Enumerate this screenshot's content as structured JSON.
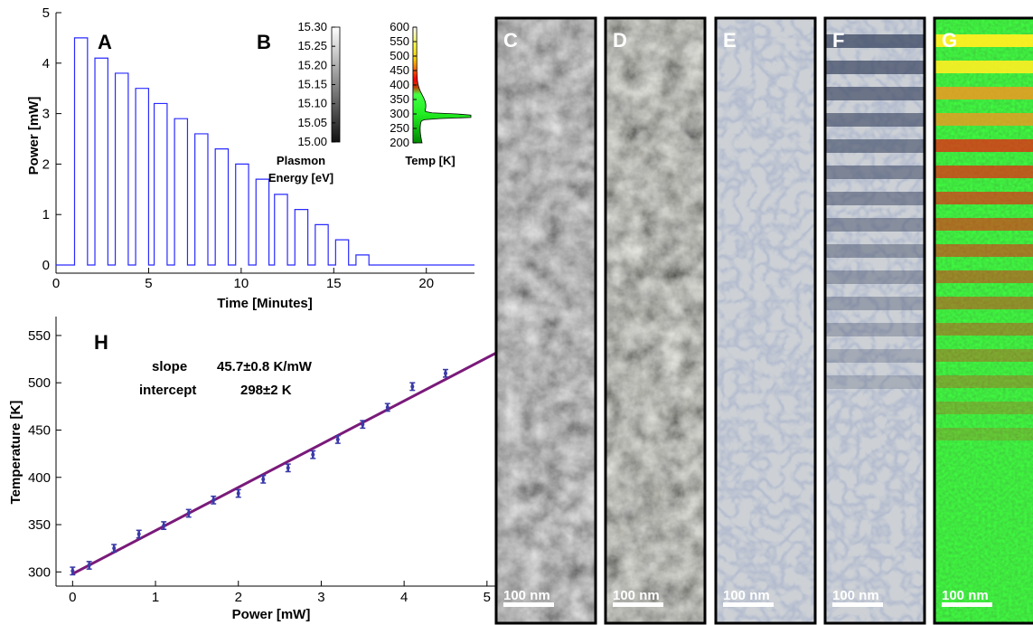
{
  "chart_data": [
    {
      "panel": "A",
      "type": "line",
      "xlabel": "Time [Minutes]",
      "ylabel": "Power [mW]",
      "xlim": [
        0,
        22.6
      ],
      "ylim": [
        0,
        5
      ],
      "xticks": [
        0,
        5,
        10,
        15,
        20
      ],
      "yticks": [
        0,
        1,
        2,
        3,
        4,
        5
      ],
      "pulse_starts": [
        1.0,
        2.1,
        3.2,
        4.3,
        5.3,
        6.4,
        7.5,
        8.6,
        9.7,
        10.8,
        11.8,
        12.9,
        14.0,
        15.1,
        16.2
      ],
      "pulse_ends": [
        1.7,
        2.8,
        3.9,
        5.0,
        6.0,
        7.1,
        8.2,
        9.3,
        10.4,
        11.5,
        12.5,
        13.6,
        14.7,
        15.8,
        16.9
      ],
      "values": [
        4.5,
        4.1,
        3.8,
        3.5,
        3.2,
        2.9,
        2.6,
        2.3,
        2.0,
        1.7,
        1.4,
        1.1,
        0.8,
        0.5,
        0.2
      ],
      "baseline": 0,
      "color": "#2a2aff"
    },
    {
      "panel": "B",
      "type": "colorbar",
      "ticks": [
        "15.30",
        "15.25",
        "15.20",
        "15.15",
        "15.10",
        "15.05",
        "15.00"
      ],
      "label_line1": "Plasmon",
      "label_line2": "Energy [eV]",
      "gradient_top": "#ffffff",
      "gradient_bottom": "#111111"
    },
    {
      "panel": "B",
      "type": "area",
      "ticks": [
        600,
        550,
        500,
        450,
        400,
        350,
        300,
        250,
        200
      ],
      "ylim": [
        200,
        600
      ],
      "xlabel": "Temp [K]",
      "peak_temp": 293,
      "colors": [
        "#00a000",
        "#33ff33",
        "#ff0000",
        "#ffff00",
        "#ffffff"
      ]
    },
    {
      "panel": "H",
      "type": "scatter",
      "xlabel": "Power [mW]",
      "ylabel": "Temperature [K]",
      "xlim": [
        -0.2,
        5.1
      ],
      "ylim": [
        285,
        570
      ],
      "xticks": [
        0,
        1,
        2,
        3,
        4,
        5
      ],
      "yticks": [
        300,
        350,
        400,
        450,
        500,
        550
      ],
      "x": [
        0.0,
        0.2,
        0.5,
        0.8,
        1.1,
        1.4,
        1.7,
        2.0,
        2.3,
        2.6,
        2.9,
        3.2,
        3.5,
        3.8,
        4.1,
        4.5
      ],
      "y": [
        301,
        307,
        325,
        340,
        349,
        362,
        376,
        383,
        398,
        410,
        424,
        440,
        456,
        474,
        496,
        510
      ],
      "yerr": 4,
      "fit_slope": 45.7,
      "fit_intercept": 298,
      "point_color": "#3a3aa8",
      "line_color": "#7a1a7a",
      "annotations": {
        "slope_label": "slope",
        "slope_value": "45.7±0.8 K/mW",
        "intercept_label": "intercept",
        "intercept_value": "298±2 K"
      }
    }
  ],
  "panel_letters": {
    "A": "A",
    "B": "B",
    "H": "H"
  },
  "image_panels": [
    {
      "letter": "C",
      "kind": "gray-texture",
      "scale_label": "100 nm"
    },
    {
      "letter": "D",
      "kind": "gray-texture",
      "scale_label": "100 nm"
    },
    {
      "letter": "E",
      "kind": "grain-map",
      "scale_label": "100 nm"
    },
    {
      "letter": "F",
      "kind": "grain-stripes",
      "scale_label": "100 nm"
    },
    {
      "letter": "G",
      "kind": "temp-stripes",
      "scale_label": "100 nm"
    }
  ]
}
